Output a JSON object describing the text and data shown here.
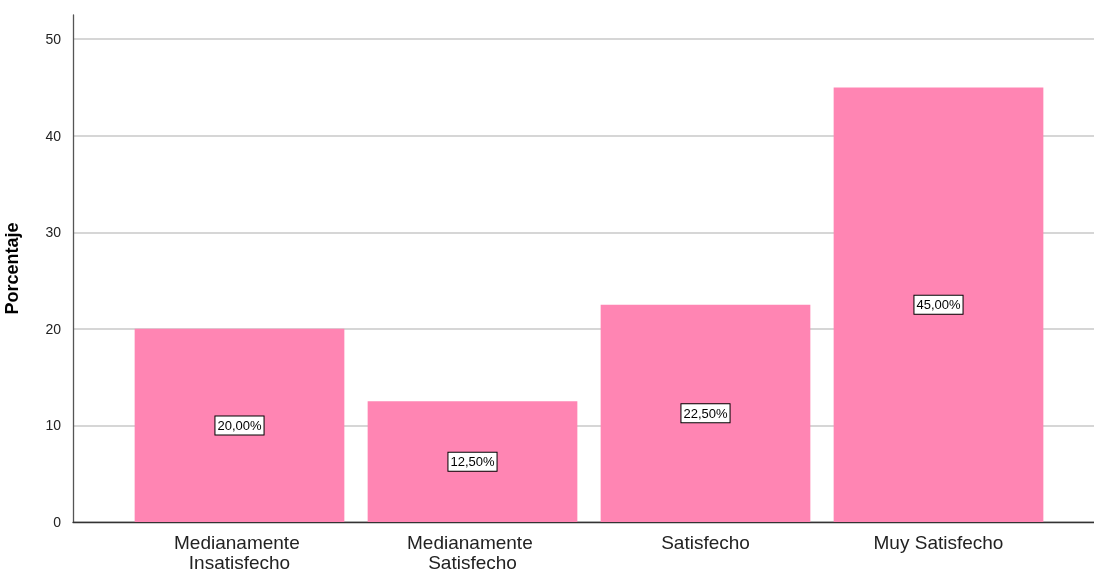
{
  "chart_data": {
    "type": "bar",
    "ylabel": "Porcentaje",
    "categories": [
      "Medianamente Insatisfecho",
      "Medianamente Satisfecho",
      "Satisfecho",
      "Muy Satisfecho"
    ],
    "values": [
      20,
      12.5,
      22.5,
      45
    ],
    "value_labels": [
      "20,00%",
      "12,50%",
      "22,50%",
      "45,00%"
    ],
    "color": "#ff85b3",
    "ylim": [
      0,
      52.5
    ],
    "yticks": [
      0,
      10,
      20,
      30,
      40,
      50
    ],
    "grid": "y"
  }
}
